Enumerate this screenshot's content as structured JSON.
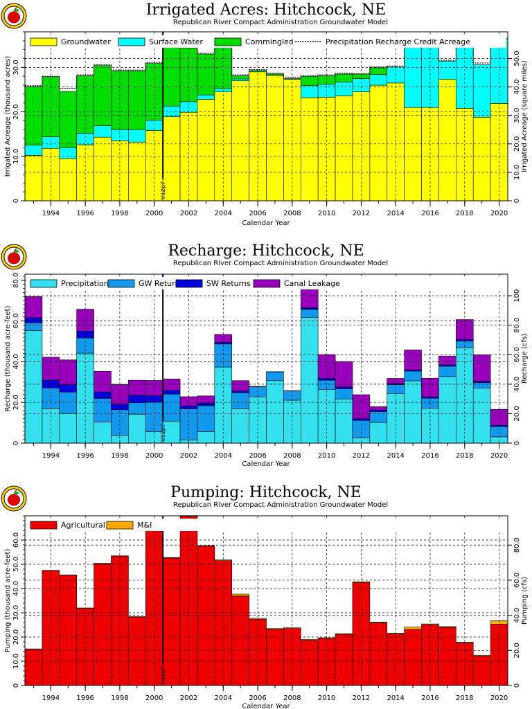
{
  "chart_data": [
    {
      "type": "bar",
      "stacked": true,
      "title": "Irrigated Acres: Hitchcock, NE",
      "subtitle": "Republican River Compact Administration Groundwater Model",
      "xlabel": "Calendar Year",
      "ylabel": "Irrigated Acreage (thousand acres)",
      "y2label": "Irrigated Acreage (square miles)",
      "ylim": [
        0,
        38
      ],
      "yticks": [
        0,
        10.0,
        20.0,
        30.0
      ],
      "y2ticks": [
        "0",
        "10.0",
        "20.0",
        "30.0",
        "40.0",
        "50.0"
      ],
      "y2_per_y": 1.5625,
      "categories": [
        1993,
        1994,
        1995,
        1996,
        1997,
        1998,
        1999,
        2000,
        2001,
        2002,
        2003,
        2004,
        2005,
        2006,
        2007,
        2008,
        2009,
        2010,
        2011,
        2012,
        2013,
        2014,
        2015,
        2016,
        2017,
        2018,
        2019,
        2020
      ],
      "xtick_labels": [
        "1994",
        "1996",
        "1998",
        "2000",
        "2002",
        "2004",
        "2006",
        "2008",
        "2010",
        "2012",
        "2014",
        "2016",
        "2018",
        "2020"
      ],
      "series": [
        {
          "name": "Groundwater",
          "color": "#ffff00",
          "values": [
            10.2,
            11.8,
            9.5,
            12.6,
            14.3,
            13.5,
            13.2,
            15.8,
            18.9,
            19.9,
            22.8,
            24.5,
            27.0,
            29.0,
            28.2,
            27.3,
            23.2,
            23.3,
            23.6,
            24.5,
            26.0,
            26.5,
            21.0,
            21.0,
            27.3,
            20.8,
            18.8,
            21.9
          ]
        },
        {
          "name": "Surface Water",
          "color": "#00ffff",
          "values": [
            2.3,
            2.6,
            2.5,
            2.6,
            2.6,
            2.5,
            2.8,
            2.3,
            2.4,
            2.4,
            1.0,
            0.7,
            0.4,
            0.0,
            0.0,
            0.0,
            2.7,
            2.9,
            3.1,
            3.0,
            2.4,
            3.6,
            14.6,
            14.6,
            4.1,
            14.1,
            11.8,
            14.5
          ]
        },
        {
          "name": "Commingled",
          "color": "#00dd00",
          "values": [
            13.2,
            13.5,
            12.6,
            12.9,
            13.5,
            13.2,
            13.2,
            12.8,
            14.7,
            12.1,
            9.2,
            9.9,
            0.7,
            0.3,
            0.3,
            0.2,
            2.1,
            1.9,
            1.8,
            1.0,
            1.5,
            0.0,
            0.0,
            0.0,
            0.0,
            0.0,
            0.0,
            0.0
          ]
        }
      ],
      "line_series": {
        "name": "Precipitation Recharge Credit Acreage",
        "style": "dashed",
        "values": [
          25.9,
          28.0,
          25.3,
          28.3,
          30.6,
          29.4,
          29.4,
          31.1,
          36.2,
          34.6,
          33.2,
          35.3,
          28.3,
          29.5,
          28.7,
          27.8,
          28.2,
          28.3,
          28.7,
          28.6,
          30.1,
          30.3,
          35.8,
          35.8,
          31.6,
          35.1,
          31.0,
          36.6
        ]
      },
      "marker": {
        "x": 2000.5,
        "label": "V12p7"
      },
      "legend_placement": "top"
    },
    {
      "type": "bar",
      "stacked": true,
      "title": "Recharge: Hitchcock, NE",
      "subtitle": "Republican River Compact Administration Groundwater Model",
      "xlabel": "Calendar Year",
      "ylabel": "Recharge (thousand acre-feet)",
      "y2label": "Recharge (cfs)",
      "ylim": [
        0,
        83
      ],
      "yticks": [
        0,
        20.0,
        40.0,
        60.0,
        80.0
      ],
      "y2ticks": [
        "0",
        "20.0",
        "40.0",
        "60.0",
        "80.0",
        "100"
      ],
      "y2_per_y": 1.381,
      "categories": [
        1993,
        1994,
        1995,
        1996,
        1997,
        1998,
        1999,
        2000,
        2001,
        2002,
        2003,
        2004,
        2005,
        2006,
        2007,
        2008,
        2009,
        2010,
        2011,
        2012,
        2013,
        2014,
        2015,
        2016,
        2017,
        2018,
        2019,
        2020
      ],
      "xtick_labels": [
        "1994",
        "1996",
        "1998",
        "2000",
        "2002",
        "2004",
        "2006",
        "2008",
        "2010",
        "2012",
        "2014",
        "2016",
        "2018",
        "2020"
      ],
      "series": [
        {
          "name": "Precipitation",
          "color": "#33e0ee",
          "values": [
            55.3,
            16.9,
            14.6,
            44.2,
            10.3,
            3.8,
            14.2,
            5.6,
            10.8,
            1.5,
            5.6,
            37.4,
            16.9,
            22.7,
            30.7,
            21.1,
            61.8,
            26.3,
            21.7,
            2.6,
            10.2,
            24.4,
            30.6,
            17.1,
            32.7,
            46.8,
            27.1,
            3.1
          ]
        },
        {
          "name": "GW Returns",
          "color": "#1199ee",
          "values": [
            3.8,
            10.2,
            10.5,
            7.5,
            11.7,
            12.6,
            5.7,
            14.5,
            13.3,
            15.3,
            12.8,
            11.3,
            7.9,
            5.0,
            4.3,
            4.6,
            3.9,
            4.6,
            5.0,
            8.6,
            5.3,
            4.3,
            4.8,
            5.0,
            5.1,
            3.4,
            2.6,
            5.0
          ]
        },
        {
          "name": "SW Returns",
          "color": "#0000dd",
          "values": [
            2.5,
            3.8,
            3.6,
            3.3,
            3.1,
            2.7,
            3.6,
            3.2,
            1.8,
            1.5,
            1.2,
            0.8,
            0.8,
            0.2,
            0.1,
            0.1,
            0.8,
            0.9,
            0.9,
            0.8,
            0.8,
            0.6,
            0.6,
            0.6,
            0.6,
            0.6,
            0.6,
            0.6
          ]
        },
        {
          "name": "Canal Leakage",
          "color": "#9900bb",
          "values": [
            10.4,
            11.3,
            12.2,
            10.8,
            10.2,
            9.7,
            7.4,
            7.5,
            5.6,
            4.5,
            3.6,
            3.9,
            5.1,
            0.0,
            0.0,
            0.0,
            13.6,
            11.7,
            12.5,
            11.8,
            1.6,
            2.5,
            9.8,
            9.2,
            4.4,
            9.9,
            13.1,
            7.9
          ]
        }
      ],
      "marker": {
        "x": 2000.5,
        "label": "V12p7"
      },
      "legend_placement": "top"
    },
    {
      "type": "bar",
      "stacked": true,
      "title": "Pumping: Hitchcock, NE",
      "subtitle": "Republican River Compact Administration Groundwater Model",
      "xlabel": "Calendar Year",
      "ylabel": "Pumping (thousand acre-feet)",
      "y2label": "Pumping (cfs)",
      "ylim": [
        0,
        70
      ],
      "yticks": [
        0,
        10.0,
        20.0,
        30.0,
        40.0,
        50.0,
        60.0
      ],
      "y2ticks": [
        "0",
        "20.0",
        "40.0",
        "60.0",
        "80.0"
      ],
      "y2_per_y": 1.381,
      "categories": [
        1993,
        1994,
        1995,
        1996,
        1997,
        1998,
        1999,
        2000,
        2001,
        2002,
        2003,
        2004,
        2005,
        2006,
        2007,
        2008,
        2009,
        2010,
        2011,
        2012,
        2013,
        2014,
        2015,
        2016,
        2017,
        2018,
        2019,
        2020
      ],
      "xtick_labels": [
        "1994",
        "1996",
        "1998",
        "2000",
        "2002",
        "2004",
        "2006",
        "2008",
        "2010",
        "2012",
        "2014",
        "2016",
        "2018",
        "2020"
      ],
      "series": [
        {
          "name": "Agricultural",
          "color": "#ee0000",
          "values": [
            15.0,
            47.4,
            45.5,
            31.9,
            50.3,
            53.4,
            28.3,
            65.6,
            52.6,
            69.9,
            57.5,
            51.5,
            36.9,
            27.3,
            23.2,
            23.5,
            18.7,
            19.4,
            21.1,
            42.5,
            25.9,
            21.3,
            23.1,
            25.1,
            24.0,
            17.6,
            12.2,
            25.3
          ]
        },
        {
          "name": "M&I",
          "color": "#ffaa00",
          "values": [
            0.1,
            0.1,
            0.1,
            0.1,
            0.1,
            0.1,
            0.1,
            0.1,
            0.2,
            0.2,
            0.2,
            0.3,
            0.8,
            0.4,
            0.3,
            0.3,
            0.3,
            0.3,
            0.3,
            0.3,
            0.3,
            0.3,
            1.0,
            0.3,
            0.3,
            0.3,
            0.3,
            1.4
          ]
        }
      ],
      "marker": {
        "x": 2000.5,
        "label": "V12p7"
      },
      "legend_placement": "top"
    }
  ]
}
